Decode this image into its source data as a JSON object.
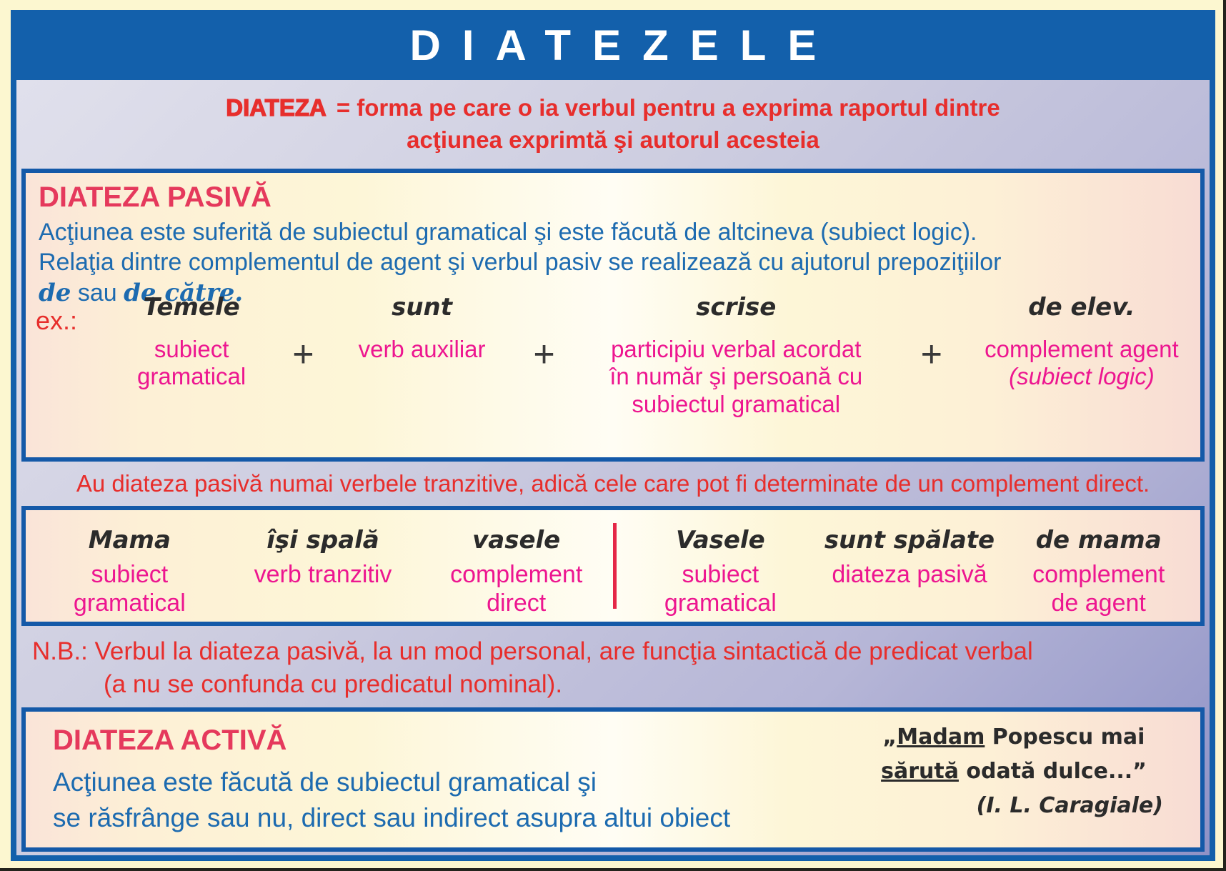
{
  "title": "DIATEZELE",
  "definition": {
    "term": "DIATEZA",
    "line1_rest": "= forma pe care o ia verbul pentru a exprima raportul dintre",
    "line2": "acţiunea exprimtă şi autorul acesteia"
  },
  "pasiva": {
    "heading": "DIATEZA PASIVĂ",
    "desc_line1": "Acţiunea este suferită de subiectul gramatical şi este făcută de altcineva (subiect logic).",
    "desc_line2": "Relaţia dintre complementul de agent şi verbul pasiv se realizează cu ajutorul prepoziţiilor",
    "desc_line3": {
      "italic1": "de",
      "plain": "sau",
      "italic2": "de către."
    },
    "example_label": "ex.:",
    "plus_sign": "+",
    "formula": [
      {
        "word": "Temele",
        "label_lines": [
          "subiect",
          "gramatical"
        ]
      },
      {
        "word": "sunt",
        "label_lines": [
          "verb auxiliar"
        ]
      },
      {
        "word": "scrise",
        "label_lines": [
          "participiu verbal acordat",
          "în număr şi persoană cu",
          "subiectul gramatical"
        ]
      },
      {
        "word": "de elev.",
        "label_lines": [
          "complement agent",
          "(subiect logic)"
        ]
      }
    ]
  },
  "transitive_note": "Au diateza pasivă numai verbele tranzitive, adică cele care pot fi determinate de un complement direct.",
  "comparison": {
    "left": [
      {
        "word": "Mama",
        "label_lines": [
          "subiect",
          "gramatical"
        ]
      },
      {
        "word": "îşi spală",
        "label_lines": [
          "verb tranzitiv",
          ""
        ]
      },
      {
        "word": "vasele",
        "label_lines": [
          "complement",
          "direct"
        ]
      }
    ],
    "right": [
      {
        "word": "Vasele",
        "label_lines": [
          "subiect",
          "gramatical"
        ]
      },
      {
        "word": "sunt spălate",
        "label_lines": [
          "diateza pasivă",
          ""
        ]
      },
      {
        "word": "de mama",
        "label_lines": [
          "complement",
          "de agent"
        ]
      }
    ]
  },
  "nb": {
    "line1": "N.B.: Verbul la diateza pasivă, la un mod personal, are funcţia sintactică de predicat verbal",
    "line2": "(a nu se confunda cu predicatul nominal)."
  },
  "activa": {
    "heading": "DIATEZA ACTIVĂ",
    "desc_line1": "Acţiunea este făcută de subiectul gramatical şi",
    "desc_line2": "se răsfrânge sau nu, direct sau indirect asupra altui obiect",
    "quote": {
      "open": "„",
      "underline1": "Madam",
      "rest1": " Popescu mai",
      "underline2": "sărută",
      "rest2": " odată dulce...”",
      "author": "(I. L. Caragiale)"
    }
  },
  "colors": {
    "panel_blue": "#1360ab",
    "frame_yellow": "#fcf7d0",
    "strip_lavender": "#cdcde0",
    "box_cream": "#fdf6d7",
    "red_text": "#e72e2c",
    "crimson_heading": "#e5395c",
    "blue_text": "#1d6bb0",
    "pink_label": "#ed1690",
    "black_word": "#2b2b2b",
    "divider_red": "#e52747"
  }
}
